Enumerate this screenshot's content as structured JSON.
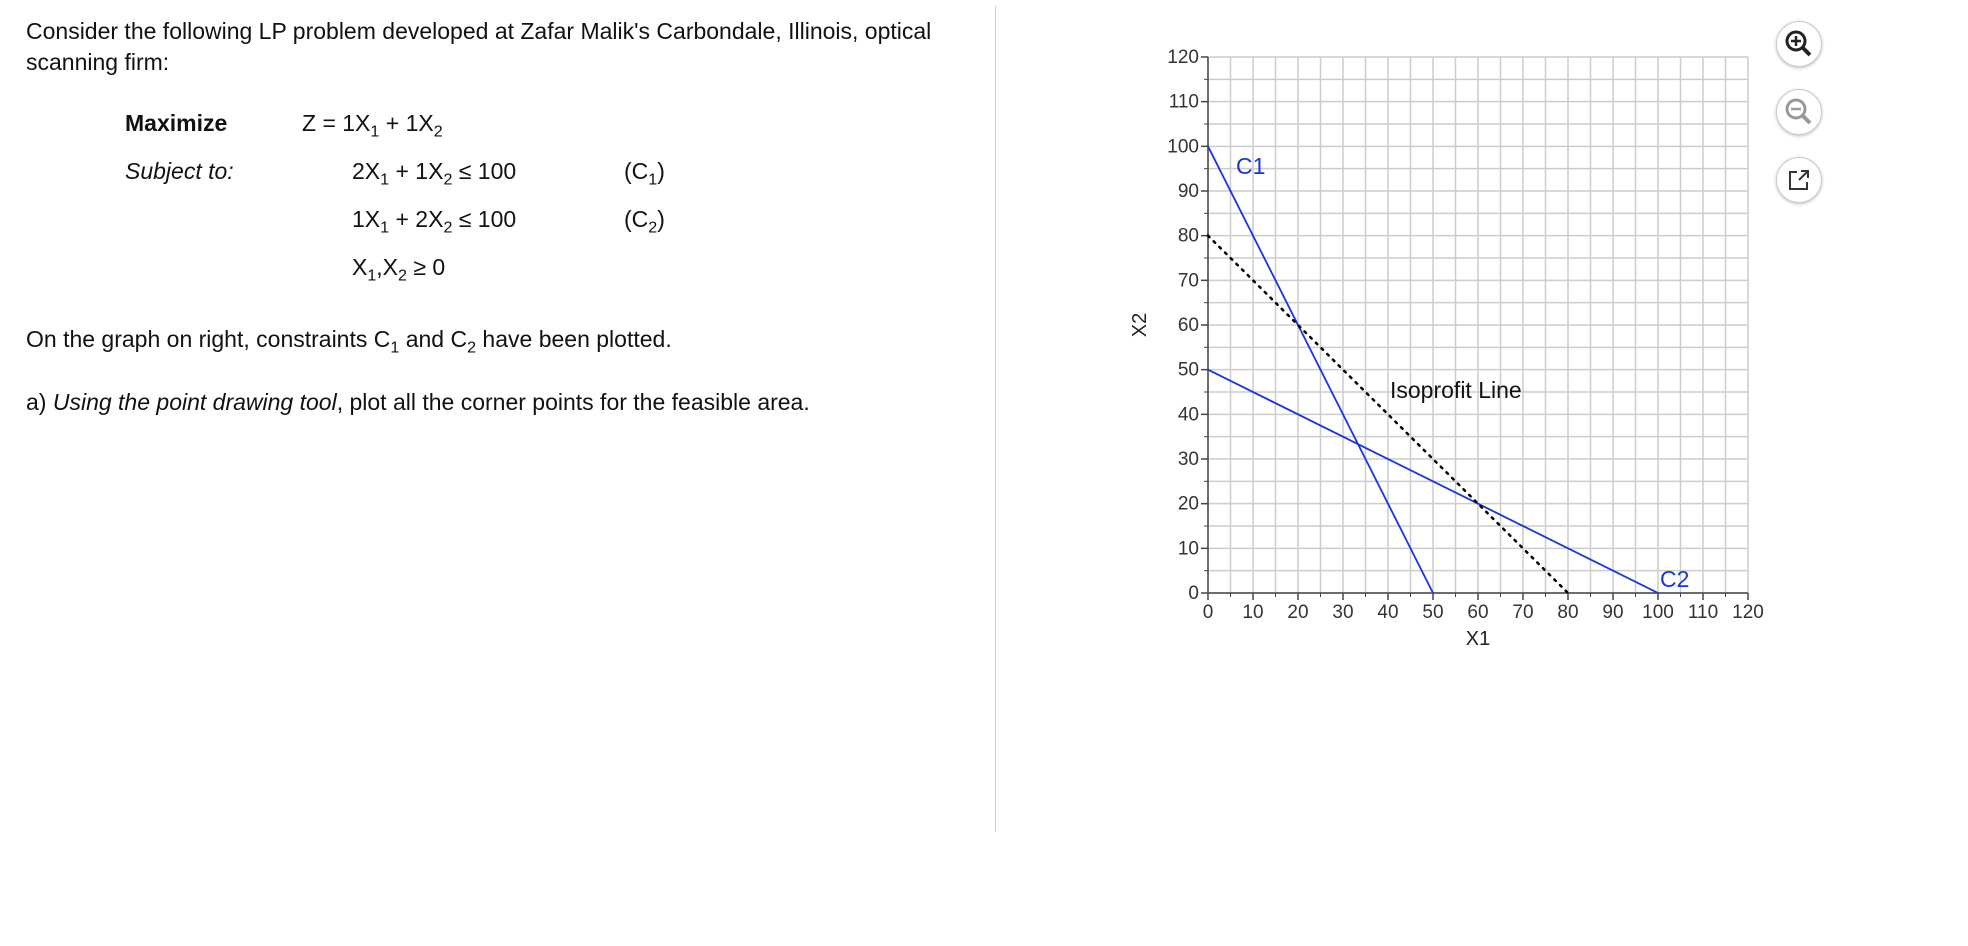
{
  "problem": {
    "intro": "Consider the following LP problem developed at Zafar Malik's Carbondale, Illinois, optical scanning firm:",
    "maximize_label": "Maximize",
    "objective": [
      "Z = 1X",
      "1",
      " + 1X",
      "2"
    ],
    "subject_to_label": "Subject to:",
    "constraints": [
      {
        "expr": [
          "2X",
          "1",
          " + 1X",
          "2",
          " ≤ 100"
        ],
        "name": [
          "(C",
          "1",
          ")"
        ]
      },
      {
        "expr": [
          "1X",
          "1",
          " + 2X",
          "2",
          " ≤ 100"
        ],
        "name": [
          "(C",
          "2",
          ")"
        ]
      },
      {
        "expr": [
          "X",
          "1",
          ",X",
          "2",
          " ≥ 0"
        ]
      }
    ],
    "graph_note": [
      "On the graph on right, constraints C",
      "1",
      " and C",
      "2",
      " have been plotted."
    ],
    "task_prefix": "a) ",
    "task_italic": "Using the point drawing tool",
    "task_rest": ", plot all the corner points for the feasible area."
  },
  "chart_data": {
    "type": "line",
    "x_label": "X1",
    "y_label": "X2",
    "xlim": [
      0,
      120
    ],
    "ylim": [
      0,
      120
    ],
    "xticks": [
      0,
      10,
      20,
      30,
      40,
      50,
      60,
      70,
      80,
      90,
      100,
      110,
      120
    ],
    "yticks": [
      0,
      10,
      20,
      30,
      40,
      50,
      60,
      70,
      80,
      90,
      100,
      110,
      120
    ],
    "grid": true,
    "series": [
      {
        "name": "C1",
        "color": "#1b36d6",
        "x": [
          0,
          50
        ],
        "values": [
          100,
          0
        ]
      },
      {
        "name": "C2",
        "color": "#1b36d6",
        "x": [
          0,
          100
        ],
        "values": [
          50,
          0
        ]
      },
      {
        "name": "Isoprofit Line",
        "color": "#000000",
        "dashed": true,
        "x": [
          0,
          80
        ],
        "values": [
          80,
          0
        ]
      }
    ]
  }
}
